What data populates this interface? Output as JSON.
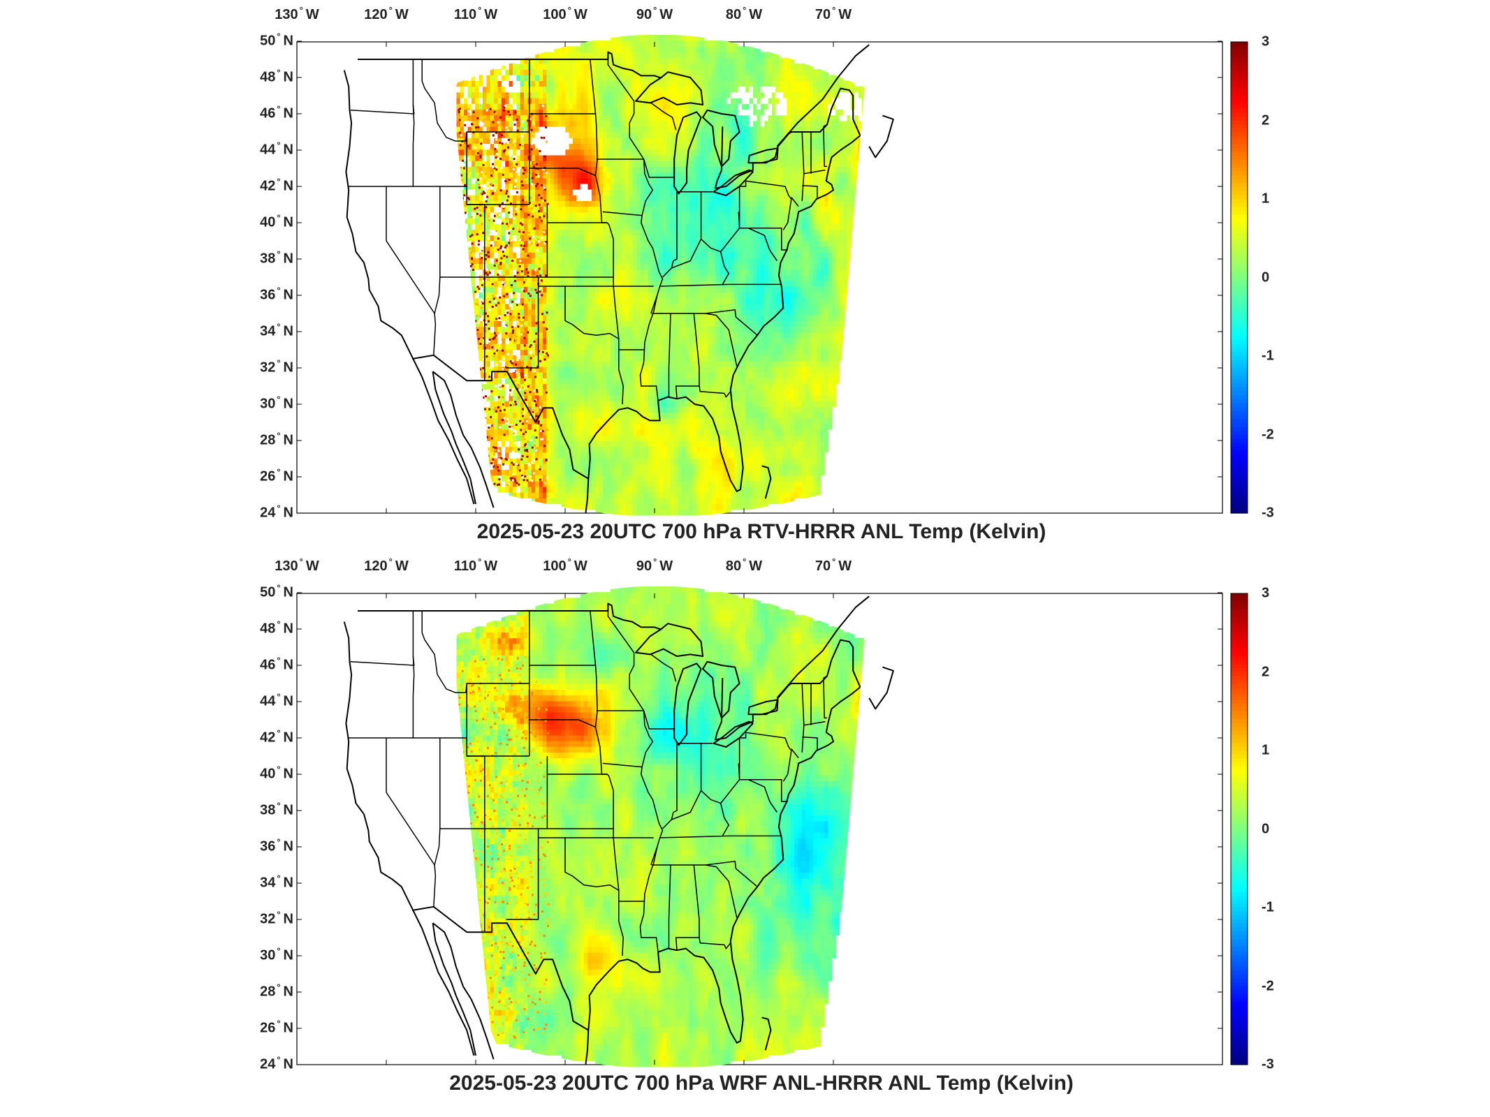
{
  "figure": {
    "panels": [
      {
        "title": "2025-05-23 20UTC 700 hPa RTV-HRRR ANL Temp (Kelvin)",
        "variant": "rtv"
      },
      {
        "title": "2025-05-23 20UTC 700 hPa WRF ANL-HRRR ANL Temp (Kelvin)",
        "variant": "wrf"
      }
    ],
    "lon_labels": [
      {
        "deg": "130",
        "hemi": "W",
        "lon": -130
      },
      {
        "deg": "120",
        "hemi": "W",
        "lon": -120
      },
      {
        "deg": "110",
        "hemi": "W",
        "lon": -110
      },
      {
        "deg": "100",
        "hemi": "W",
        "lon": -100
      },
      {
        "deg": "90",
        "hemi": "W",
        "lon": -90
      },
      {
        "deg": "80",
        "hemi": "W",
        "lon": -80
      },
      {
        "deg": "70",
        "hemi": "W",
        "lon": -70
      }
    ],
    "lat_labels": [
      {
        "deg": "50",
        "hemi": "N",
        "lat": 50
      },
      {
        "deg": "48",
        "hemi": "N",
        "lat": 48
      },
      {
        "deg": "46",
        "hemi": "N",
        "lat": 46
      },
      {
        "deg": "44",
        "hemi": "N",
        "lat": 44
      },
      {
        "deg": "42",
        "hemi": "N",
        "lat": 42
      },
      {
        "deg": "40",
        "hemi": "N",
        "lat": 40
      },
      {
        "deg": "38",
        "hemi": "N",
        "lat": 38
      },
      {
        "deg": "36",
        "hemi": "N",
        "lat": 36
      },
      {
        "deg": "34",
        "hemi": "N",
        "lat": 34
      },
      {
        "deg": "32",
        "hemi": "N",
        "lat": 32
      },
      {
        "deg": "30",
        "hemi": "N",
        "lat": 30
      },
      {
        "deg": "28",
        "hemi": "N",
        "lat": 28
      },
      {
        "deg": "26",
        "hemi": "N",
        "lat": 26
      },
      {
        "deg": "24",
        "hemi": "N",
        "lat": 24
      }
    ],
    "colorbar": {
      "ticks": [
        "3",
        "2",
        "1",
        "0",
        "-1",
        "-2",
        "-3"
      ],
      "min": -3,
      "max": 3,
      "colormap": "jet",
      "colors": [
        "#00008f",
        "#0000ff",
        "#00ffff",
        "#7fff7f",
        "#ffff00",
        "#ff0000",
        "#800000"
      ]
    },
    "colors": {
      "land_empty": "#ffffff",
      "boundary": "#000000",
      "missing": "#ffffff"
    }
  }
}
